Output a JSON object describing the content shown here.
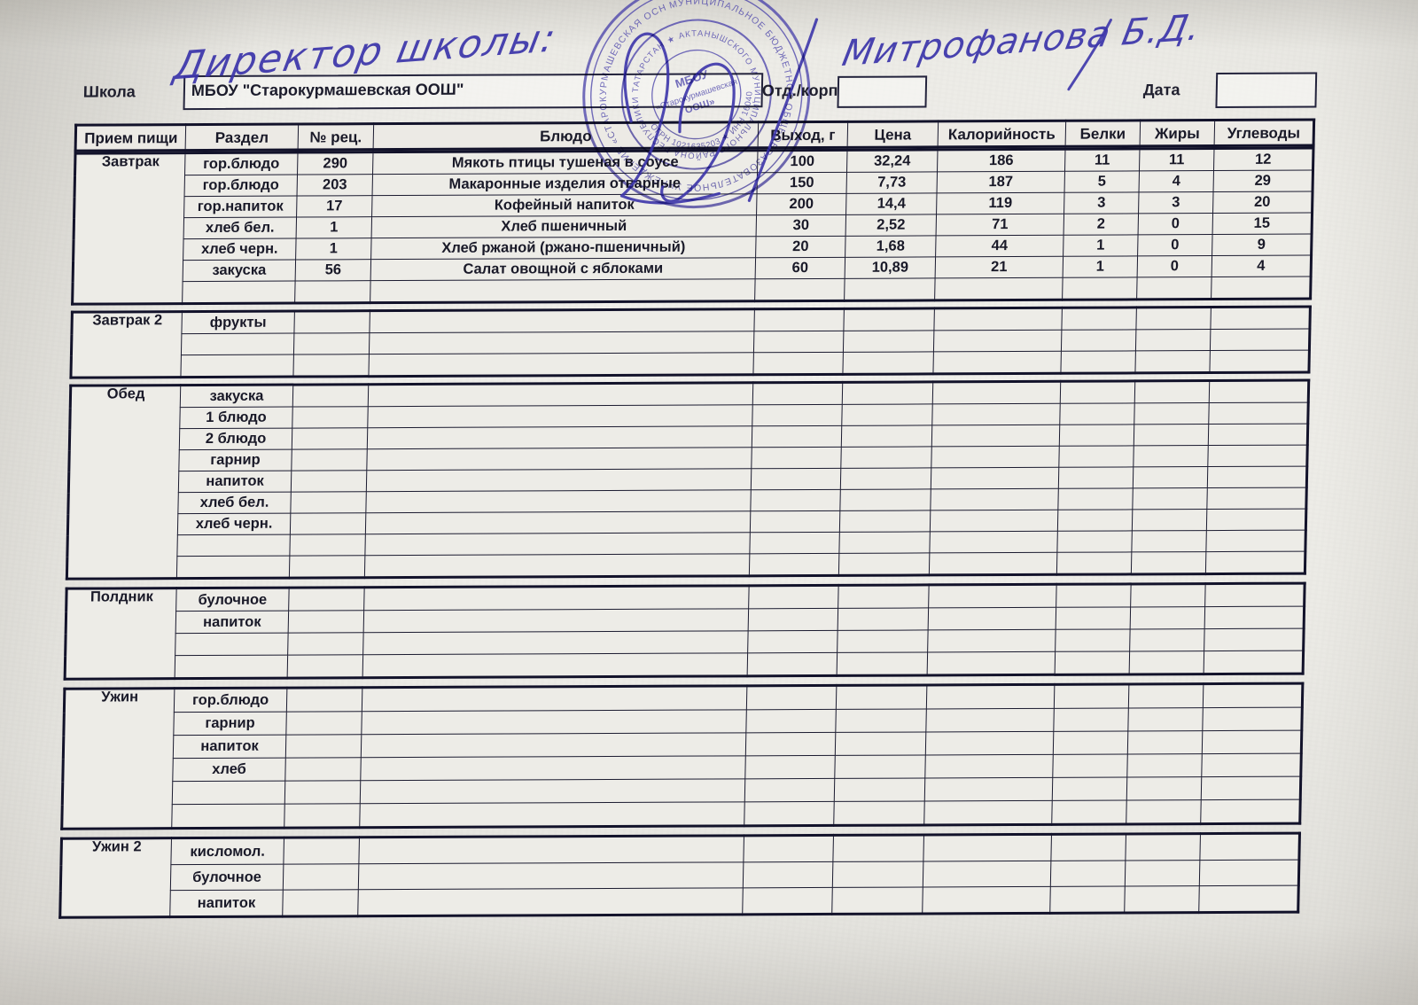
{
  "document": {
    "handwriting": {
      "role": "Директор школы:",
      "name": "Митрофанова Б.Д."
    },
    "form": {
      "school_label": "Школа",
      "school_value": "МБОУ \"Старокурмашевская ООШ\"",
      "dept_label": "Отд./корп",
      "dept_value": "",
      "date_label": "Дата",
      "date_value": ""
    },
    "stamp": {
      "outer_ring": "МУНИЦИПАЛЬНОЕ БЮДЖЕТНОЕ ОБЩЕОБРАЗОВАТЕЛЬНОЕ УЧРЕЖДЕНИЕ «СТАРОКУРМАШЕВСКАЯ ОСНОВНАЯ ОБЩЕОБРАЗОВАТЕЛЬНАЯ ШКОЛА» ",
      "district_ring": "АКТАНЫШСКОГО МУНИЦИПАЛЬНОГО РАЙОНА РЕСПУБЛИКИ ТАТАРСТАН ★ ",
      "reg_ring": "ОГРН 1021635203 ★ ИНН 1604005910 ★ ",
      "center_line1": "МБОУ",
      "center_line2": "«Старокурмашевская",
      "center_line3": "ООШ»"
    }
  },
  "colors": {
    "ink": "#3c35aa",
    "stamp_ink": "#453da8",
    "table_line": "#1b1b30",
    "paper_cell": "#edece7",
    "empty_cell": "#d8d7d2"
  },
  "table": {
    "columns": [
      "Прием пищи",
      "Раздел",
      "№ рец.",
      "Блюдо",
      "Выход, г",
      "Цена",
      "Калорийность",
      "Белки",
      "Жиры",
      "Углеводы"
    ],
    "sections": [
      {
        "meal": "Завтрак",
        "rows": [
          {
            "razdel": "гор.блюдо",
            "rec": "290",
            "dish": "Мякоть птицы тушеная в соусе",
            "out": "100",
            "price": "32,24",
            "kcal": "186",
            "prot": "11",
            "fat": "11",
            "carb": "12"
          },
          {
            "razdel": "гор.блюдо",
            "rec": "203",
            "dish": "Макаронные изделия отварные",
            "out": "150",
            "price": "7,73",
            "kcal": "187",
            "prot": "5",
            "fat": "4",
            "carb": "29"
          },
          {
            "razdel": "гор.напиток",
            "rec": "17",
            "dish": "Кофейный напиток",
            "out": "200",
            "price": "14,4",
            "kcal": "119",
            "prot": "3",
            "fat": "3",
            "carb": "20"
          },
          {
            "razdel": "хлеб бел.",
            "rec": "1",
            "dish": "Хлеб пшеничный",
            "out": "30",
            "price": "2,52",
            "kcal": "71",
            "prot": "2",
            "fat": "0",
            "carb": "15"
          },
          {
            "razdel": "хлеб черн.",
            "rec": "1",
            "dish": "Хлеб ржаной (ржано-пшеничный)",
            "out": "20",
            "price": "1,68",
            "kcal": "44",
            "prot": "1",
            "fat": "0",
            "carb": "9"
          },
          {
            "razdel": "закуска",
            "rec": "56",
            "dish": "Салат овощной с яблоками",
            "out": "60",
            "price": "10,89",
            "kcal": "21",
            "prot": "1",
            "fat": "0",
            "carb": "4"
          },
          {
            "razdel": "",
            "rec": "",
            "dish": "",
            "out": "",
            "price": "",
            "kcal": "",
            "prot": "",
            "fat": "",
            "carb": ""
          }
        ]
      },
      {
        "meal": "Завтрак 2",
        "rows": [
          {
            "razdel": "фрукты",
            "rec": "",
            "dish": "",
            "out": "",
            "price": "",
            "kcal": "",
            "prot": "",
            "fat": "",
            "carb": ""
          },
          {
            "razdel": "",
            "rec": "",
            "dish": "",
            "out": "",
            "price": "",
            "kcal": "",
            "prot": "",
            "fat": "",
            "carb": ""
          },
          {
            "razdel": "",
            "rec": "",
            "dish": "",
            "out": "",
            "price": "",
            "kcal": "",
            "prot": "",
            "fat": "",
            "carb": ""
          }
        ]
      },
      {
        "meal": "Обед",
        "rows": [
          {
            "razdel": "закуска",
            "rec": "",
            "dish": "",
            "out": "",
            "price": "",
            "kcal": "",
            "prot": "",
            "fat": "",
            "carb": ""
          },
          {
            "razdel": "1 блюдо",
            "rec": "",
            "dish": "",
            "out": "",
            "price": "",
            "kcal": "",
            "prot": "",
            "fat": "",
            "carb": ""
          },
          {
            "razdel": "2 блюдо",
            "rec": "",
            "dish": "",
            "out": "",
            "price": "",
            "kcal": "",
            "prot": "",
            "fat": "",
            "carb": ""
          },
          {
            "razdel": "гарнир",
            "rec": "",
            "dish": "",
            "out": "",
            "price": "",
            "kcal": "",
            "prot": "",
            "fat": "",
            "carb": ""
          },
          {
            "razdel": "напиток",
            "rec": "",
            "dish": "",
            "out": "",
            "price": "",
            "kcal": "",
            "prot": "",
            "fat": "",
            "carb": ""
          },
          {
            "razdel": "хлеб бел.",
            "rec": "",
            "dish": "",
            "out": "",
            "price": "",
            "kcal": "",
            "prot": "",
            "fat": "",
            "carb": ""
          },
          {
            "razdel": "хлеб черн.",
            "rec": "",
            "dish": "",
            "out": "",
            "price": "",
            "kcal": "",
            "prot": "",
            "fat": "",
            "carb": ""
          },
          {
            "razdel": "",
            "rec": "",
            "dish": "",
            "out": "",
            "price": "",
            "kcal": "",
            "prot": "",
            "fat": "",
            "carb": ""
          },
          {
            "razdel": "",
            "rec": "",
            "dish": "",
            "out": "",
            "price": "",
            "kcal": "",
            "prot": "",
            "fat": "",
            "carb": ""
          }
        ]
      },
      {
        "meal": "Полдник",
        "rows": [
          {
            "razdel": "булочное",
            "rec": "",
            "dish": "",
            "out": "",
            "price": "",
            "kcal": "",
            "prot": "",
            "fat": "",
            "carb": ""
          },
          {
            "razdel": "напиток",
            "rec": "",
            "dish": "",
            "out": "",
            "price": "",
            "kcal": "",
            "prot": "",
            "fat": "",
            "carb": ""
          },
          {
            "razdel": "",
            "rec": "",
            "dish": "",
            "out": "",
            "price": "",
            "kcal": "",
            "prot": "",
            "fat": "",
            "carb": ""
          },
          {
            "razdel": "",
            "rec": "",
            "dish": "",
            "out": "",
            "price": "",
            "kcal": "",
            "prot": "",
            "fat": "",
            "carb": ""
          }
        ]
      },
      {
        "meal": "Ужин",
        "rows": [
          {
            "razdel": "гор.блюдо",
            "rec": "",
            "dish": "",
            "out": "",
            "price": "",
            "kcal": "",
            "prot": "",
            "fat": "",
            "carb": ""
          },
          {
            "razdel": "гарнир",
            "rec": "",
            "dish": "",
            "out": "",
            "price": "",
            "kcal": "",
            "prot": "",
            "fat": "",
            "carb": ""
          },
          {
            "razdel": "напиток",
            "rec": "",
            "dish": "",
            "out": "",
            "price": "",
            "kcal": "",
            "prot": "",
            "fat": "",
            "carb": ""
          },
          {
            "razdel": "хлеб",
            "rec": "",
            "dish": "",
            "out": "",
            "price": "",
            "kcal": "",
            "prot": "",
            "fat": "",
            "carb": ""
          },
          {
            "razdel": "",
            "rec": "",
            "dish": "",
            "out": "",
            "price": "",
            "kcal": "",
            "prot": "",
            "fat": "",
            "carb": ""
          },
          {
            "razdel": "",
            "rec": "",
            "dish": "",
            "out": "",
            "price": "",
            "kcal": "",
            "prot": "",
            "fat": "",
            "carb": ""
          }
        ]
      },
      {
        "meal": "Ужин 2",
        "rows": [
          {
            "razdel": "кисломол.",
            "rec": "",
            "dish": "",
            "out": "",
            "price": "",
            "kcal": "",
            "prot": "",
            "fat": "",
            "carb": ""
          },
          {
            "razdel": "булочное",
            "rec": "",
            "dish": "",
            "out": "",
            "price": "",
            "kcal": "",
            "prot": "",
            "fat": "",
            "carb": ""
          },
          {
            "razdel": "напиток",
            "rec": "",
            "dish": "",
            "out": "",
            "price": "",
            "kcal": "",
            "prot": "",
            "fat": "",
            "carb": ""
          }
        ]
      }
    ]
  }
}
